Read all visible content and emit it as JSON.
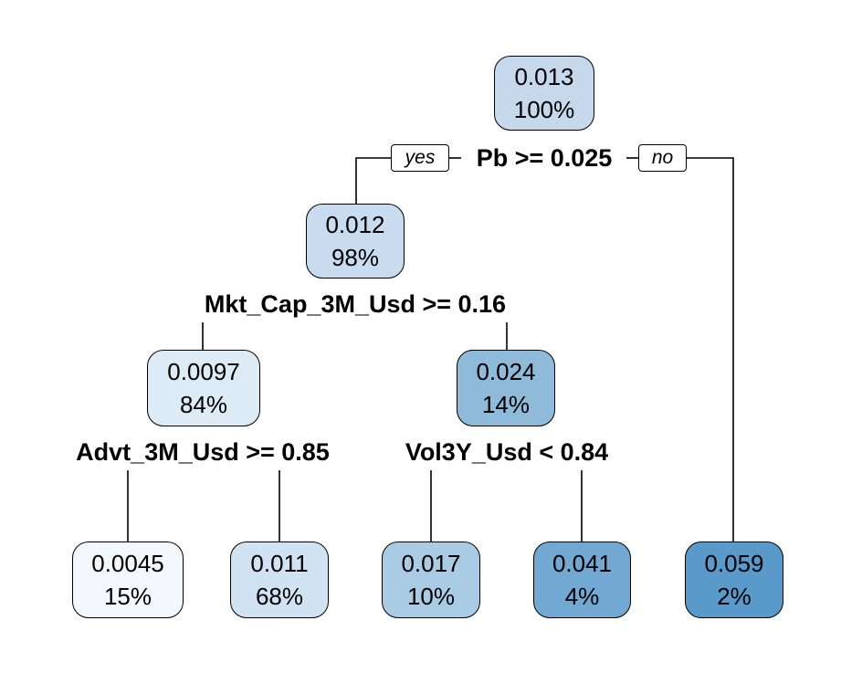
{
  "nodes": {
    "root": {
      "value": "0.013",
      "percent": "100%",
      "fill": "#c6d8ec"
    },
    "n_left": {
      "value": "0.012",
      "percent": "98%",
      "fill": "#c8dbef"
    },
    "n_ll": {
      "value": "0.0097",
      "percent": "84%",
      "fill": "#ddebf7"
    },
    "n_lr": {
      "value": "0.024",
      "percent": "14%",
      "fill": "#8fbad9"
    },
    "leaf_1": {
      "value": "0.0045",
      "percent": "15%",
      "fill": "#f3f8fd"
    },
    "leaf_2": {
      "value": "0.011",
      "percent": "68%",
      "fill": "#d1e3f3"
    },
    "leaf_3": {
      "value": "0.017",
      "percent": "10%",
      "fill": "#a9cbe4"
    },
    "leaf_4": {
      "value": "0.041",
      "percent": "4%",
      "fill": "#72a8d2"
    },
    "leaf_5": {
      "value": "0.059",
      "percent": "2%",
      "fill": "#5a9acb"
    }
  },
  "splits": {
    "root": "Pb >= 0.025",
    "n_left": "Mkt_Cap_3M_Usd >= 0.16",
    "n_ll": "Advt_3M_Usd >= 0.85",
    "n_lr": "Vol3Y_Usd < 0.84"
  },
  "branch_labels": {
    "yes": "yes",
    "no": "no"
  }
}
